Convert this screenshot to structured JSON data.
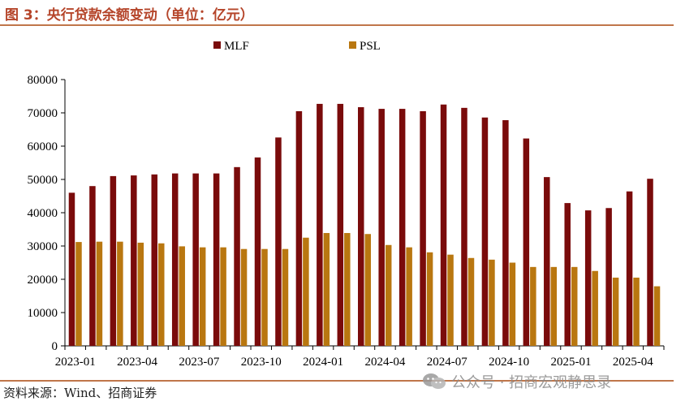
{
  "header": {
    "title": "图 3：央行贷款余额变动（单位：亿元）"
  },
  "footer": {
    "source": "资料来源：Wind、招商证券",
    "watermark": "公众号 · 招商宏观静思录"
  },
  "colors": {
    "MLF": "#7a0b0b",
    "PSL": "#b97710",
    "accent": "#b5452a",
    "rule": "#c0764a"
  },
  "chart_data": {
    "type": "bar",
    "ylim": [
      0,
      80000
    ],
    "yticks": [
      0,
      10000,
      20000,
      30000,
      40000,
      50000,
      60000,
      70000,
      80000
    ],
    "xtick_labels": [
      "2023-01",
      "2023-04",
      "2023-07",
      "2023-10",
      "2024-01",
      "2024-04",
      "2024-07",
      "2024-10",
      "2025-01",
      "2025-04"
    ],
    "categories": [
      "2023-01",
      "2023-02",
      "2023-03",
      "2023-04",
      "2023-05",
      "2023-06",
      "2023-07",
      "2023-08",
      "2023-09",
      "2023-10",
      "2023-11",
      "2023-12",
      "2024-01",
      "2024-02",
      "2024-03",
      "2024-04",
      "2024-05",
      "2024-06",
      "2024-07",
      "2024-08",
      "2024-09",
      "2024-10",
      "2024-11",
      "2024-12",
      "2025-01",
      "2025-02",
      "2025-03",
      "2025-04",
      "2025-05"
    ],
    "series": [
      {
        "name": "MLF",
        "values": [
          46000,
          48000,
          51000,
          51200,
          51500,
          51800,
          51800,
          51800,
          53700,
          56600,
          62600,
          70500,
          72700,
          72700,
          71700,
          71200,
          71200,
          70500,
          72500,
          71500,
          68600,
          67800,
          62300,
          50700,
          42900,
          40700,
          41400,
          46400,
          50200
        ]
      },
      {
        "name": "PSL",
        "values": [
          31200,
          31300,
          31300,
          31000,
          30800,
          29900,
          29600,
          29600,
          29100,
          29100,
          29100,
          32500,
          33900,
          33900,
          33600,
          30300,
          29600,
          28100,
          27400,
          26400,
          25900,
          25000,
          23700,
          23700,
          23700,
          22500,
          20500,
          20500,
          17900
        ]
      }
    ],
    "legend": "top-center",
    "grid": false
  }
}
